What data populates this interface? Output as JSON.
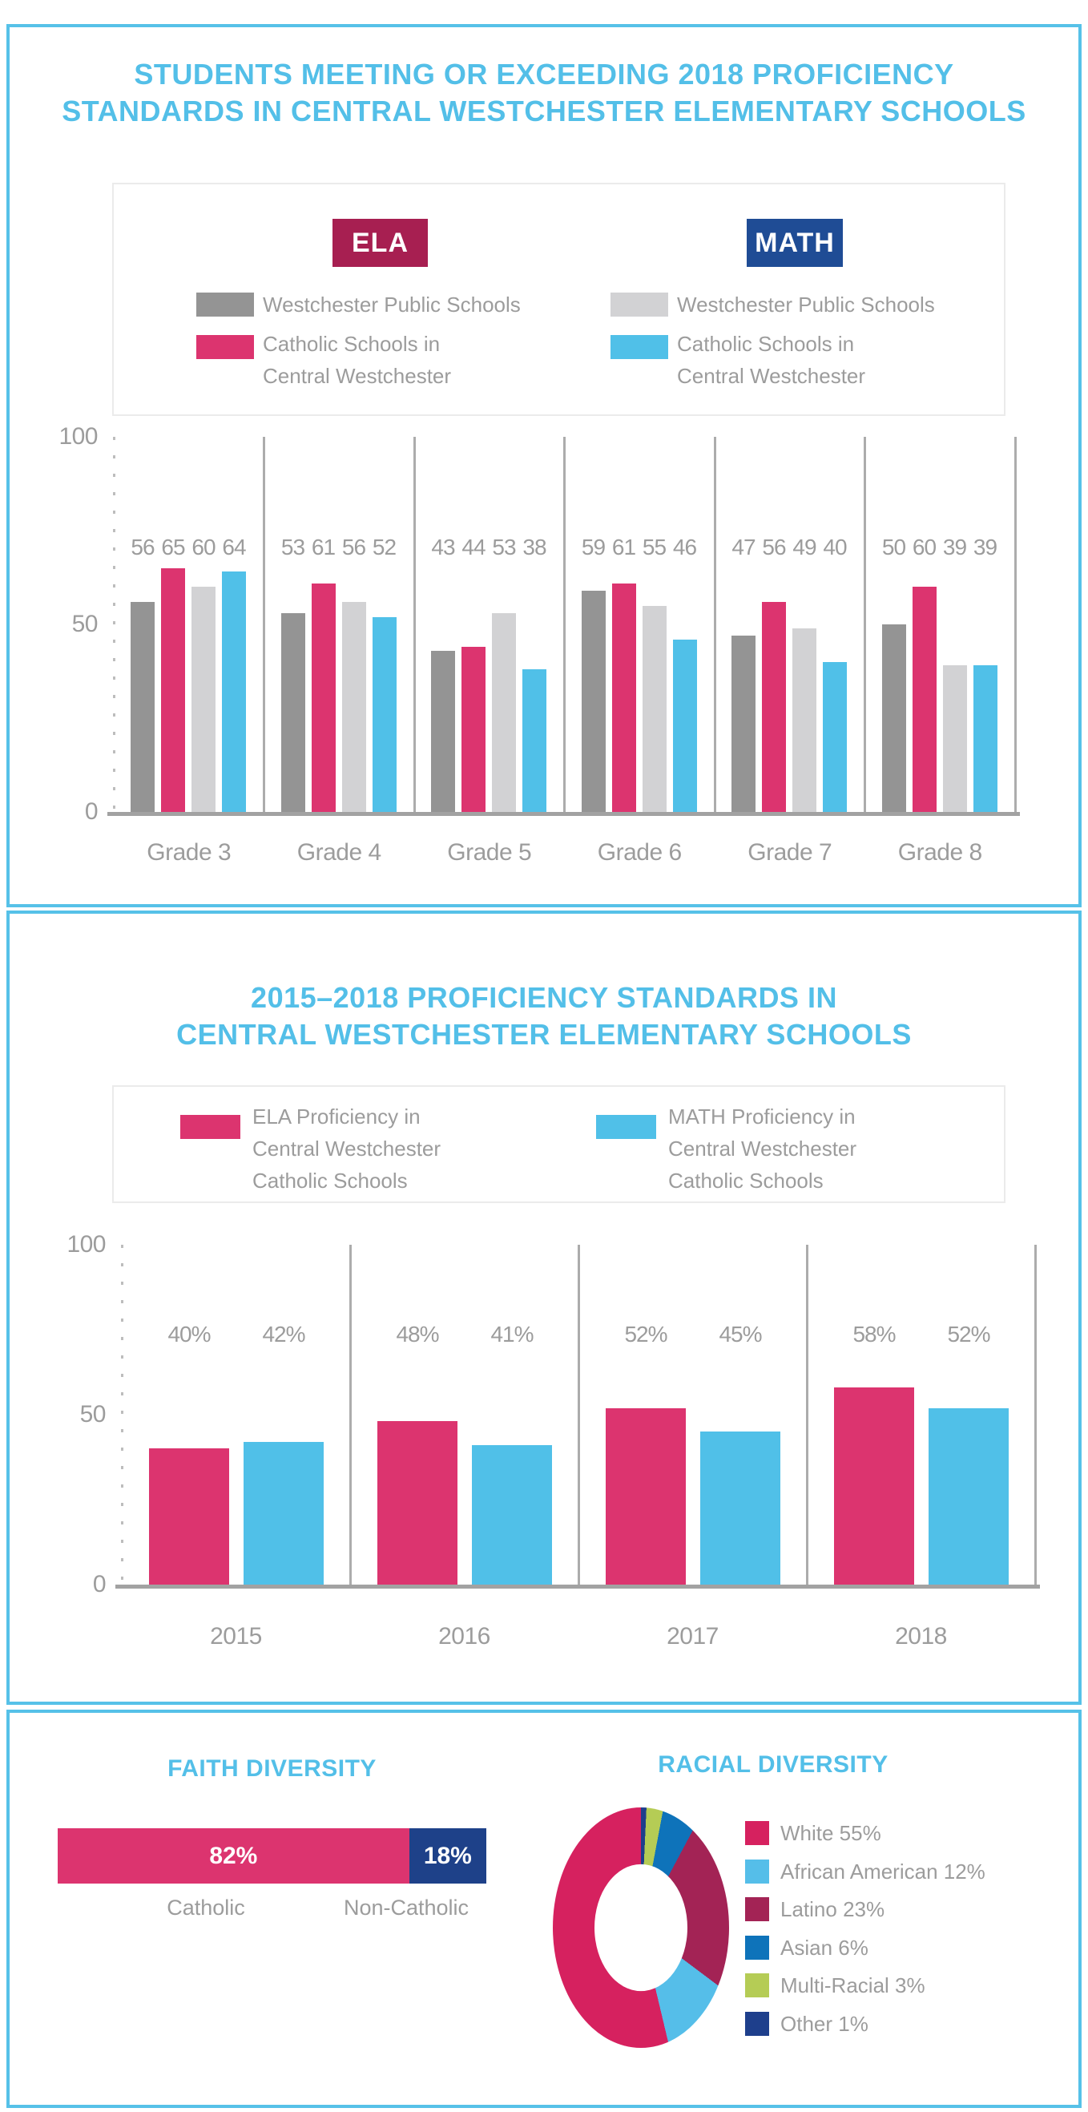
{
  "colors": {
    "accent_blue": "#56C1E8",
    "title_blue": "#53BFE8",
    "text_gray": "#9C9C9C",
    "line_gray": "#ACACAC",
    "tick_gray": "#BDBDBD",
    "legend_border": "#EBEBEB",
    "ela_badge": "#A71F51",
    "math_badge": "#1F4C95",
    "bar_dark_gray": "#949494",
    "bar_pink": "#DC346F",
    "bar_light_gray": "#D2D2D4",
    "bar_light_blue": "#50C0E8",
    "faith_navy": "#1E4189"
  },
  "panel1": {
    "title_lines": [
      "STUDENTS MEETING OR EXCEEDING 2018 PROFICIENCY",
      "STANDARDS IN CENTRAL WESTCHESTER ELEMENTARY SCHOOLS"
    ],
    "legend": {
      "ela_badge": "ELA",
      "math_badge": "MATH",
      "ela_item1": "Westchester Public Schools",
      "ela_item2_line1": "Catholic Schools in",
      "ela_item2_line2": "Central Westchester",
      "math_item1": "Westchester Public Schools",
      "math_item2_line1": "Catholic Schools in",
      "math_item2_line2": "Central Westchester"
    }
  },
  "panel2": {
    "title_lines": [
      "2015–2018 PROFICIENCY STANDARDS IN",
      "CENTRAL WESTCHESTER ELEMENTARY SCHOOLS"
    ],
    "legend": {
      "ela_line1": "ELA Proficiency in",
      "ela_line2": "Central Westchester",
      "ela_line3": "Catholic Schools",
      "math_line1": "MATH Proficiency in",
      "math_line2": "Central Westchester",
      "math_line3": "Catholic Schools"
    }
  },
  "panel3": {
    "faith_title": "FAITH DIVERSITY",
    "racial_title": "RACIAL DIVERSITY"
  },
  "chart_data": [
    {
      "type": "bar",
      "title": "STUDENTS MEETING OR EXCEEDING 2018 PROFICIENCY STANDARDS IN CENTRAL WESTCHESTER ELEMENTARY SCHOOLS",
      "categories": [
        "Grade 3",
        "Grade 4",
        "Grade 5",
        "Grade 6",
        "Grade 7",
        "Grade 8"
      ],
      "series": [
        {
          "name": "ELA - Westchester Public Schools",
          "color": "#949494",
          "values": [
            56,
            53,
            43,
            59,
            47,
            50
          ]
        },
        {
          "name": "ELA - Catholic Schools in Central Westchester",
          "color": "#DC346F",
          "values": [
            65,
            61,
            44,
            61,
            56,
            60
          ]
        },
        {
          "name": "MATH - Westchester Public Schools",
          "color": "#D2D2D4",
          "values": [
            60,
            56,
            53,
            55,
            49,
            39
          ]
        },
        {
          "name": "MATH - Catholic Schools in Central Westchester",
          "color": "#50C0E8",
          "values": [
            64,
            52,
            38,
            46,
            40,
            39
          ]
        }
      ],
      "ylim": [
        0,
        100
      ],
      "yticks": [
        "100",
        "50",
        "0"
      ],
      "grid": false,
      "value_label_format": "plain"
    },
    {
      "type": "bar",
      "title": "2015–2018 PROFICIENCY STANDARDS IN CENTRAL WESTCHESTER ELEMENTARY SCHOOLS",
      "categories": [
        "2015",
        "2016",
        "2017",
        "2018"
      ],
      "series": [
        {
          "name": "ELA Proficiency in Central Westchester Catholic Schools",
          "color": "#DC346F",
          "values": [
            40,
            48,
            52,
            58
          ]
        },
        {
          "name": "MATH Proficiency in Central Westchester Catholic Schools",
          "color": "#50C0E8",
          "values": [
            42,
            41,
            45,
            52
          ]
        }
      ],
      "ylim": [
        0,
        100
      ],
      "yticks": [
        "100",
        "50",
        "0"
      ],
      "grid": false,
      "value_label_format": "percent"
    },
    {
      "type": "stacked-bar",
      "title": "FAITH DIVERSITY",
      "segments": [
        {
          "label": "Catholic",
          "value": 82,
          "display": "82%",
          "color": "#DC346F"
        },
        {
          "label": "Non-Catholic",
          "value": 18,
          "display": "18%",
          "color": "#1E4189"
        }
      ]
    },
    {
      "type": "pie",
      "subtype": "donut",
      "title": "RACIAL DIVERSITY",
      "slices": [
        {
          "label": "White",
          "value": 55,
          "display": "White 55%",
          "color": "#D6215F"
        },
        {
          "label": "African American",
          "value": 12,
          "display": "African American 12%",
          "color": "#55BEE9"
        },
        {
          "label": "Latino",
          "value": 23,
          "display": "Latino 23%",
          "color": "#A32355"
        },
        {
          "label": "Asian",
          "value": 6,
          "display": "Asian 6%",
          "color": "#0E73BA"
        },
        {
          "label": "Multi-Racial",
          "value": 3,
          "display": "Multi-Racial 3%",
          "color": "#B5CC55"
        },
        {
          "label": "Other",
          "value": 1,
          "display": "Other 1%",
          "color": "#1E3F8C"
        }
      ],
      "draw_order_clockwise_from_top": [
        "Other",
        "Multi-Racial",
        "Asian",
        "Latino",
        "African American",
        "White"
      ]
    }
  ]
}
